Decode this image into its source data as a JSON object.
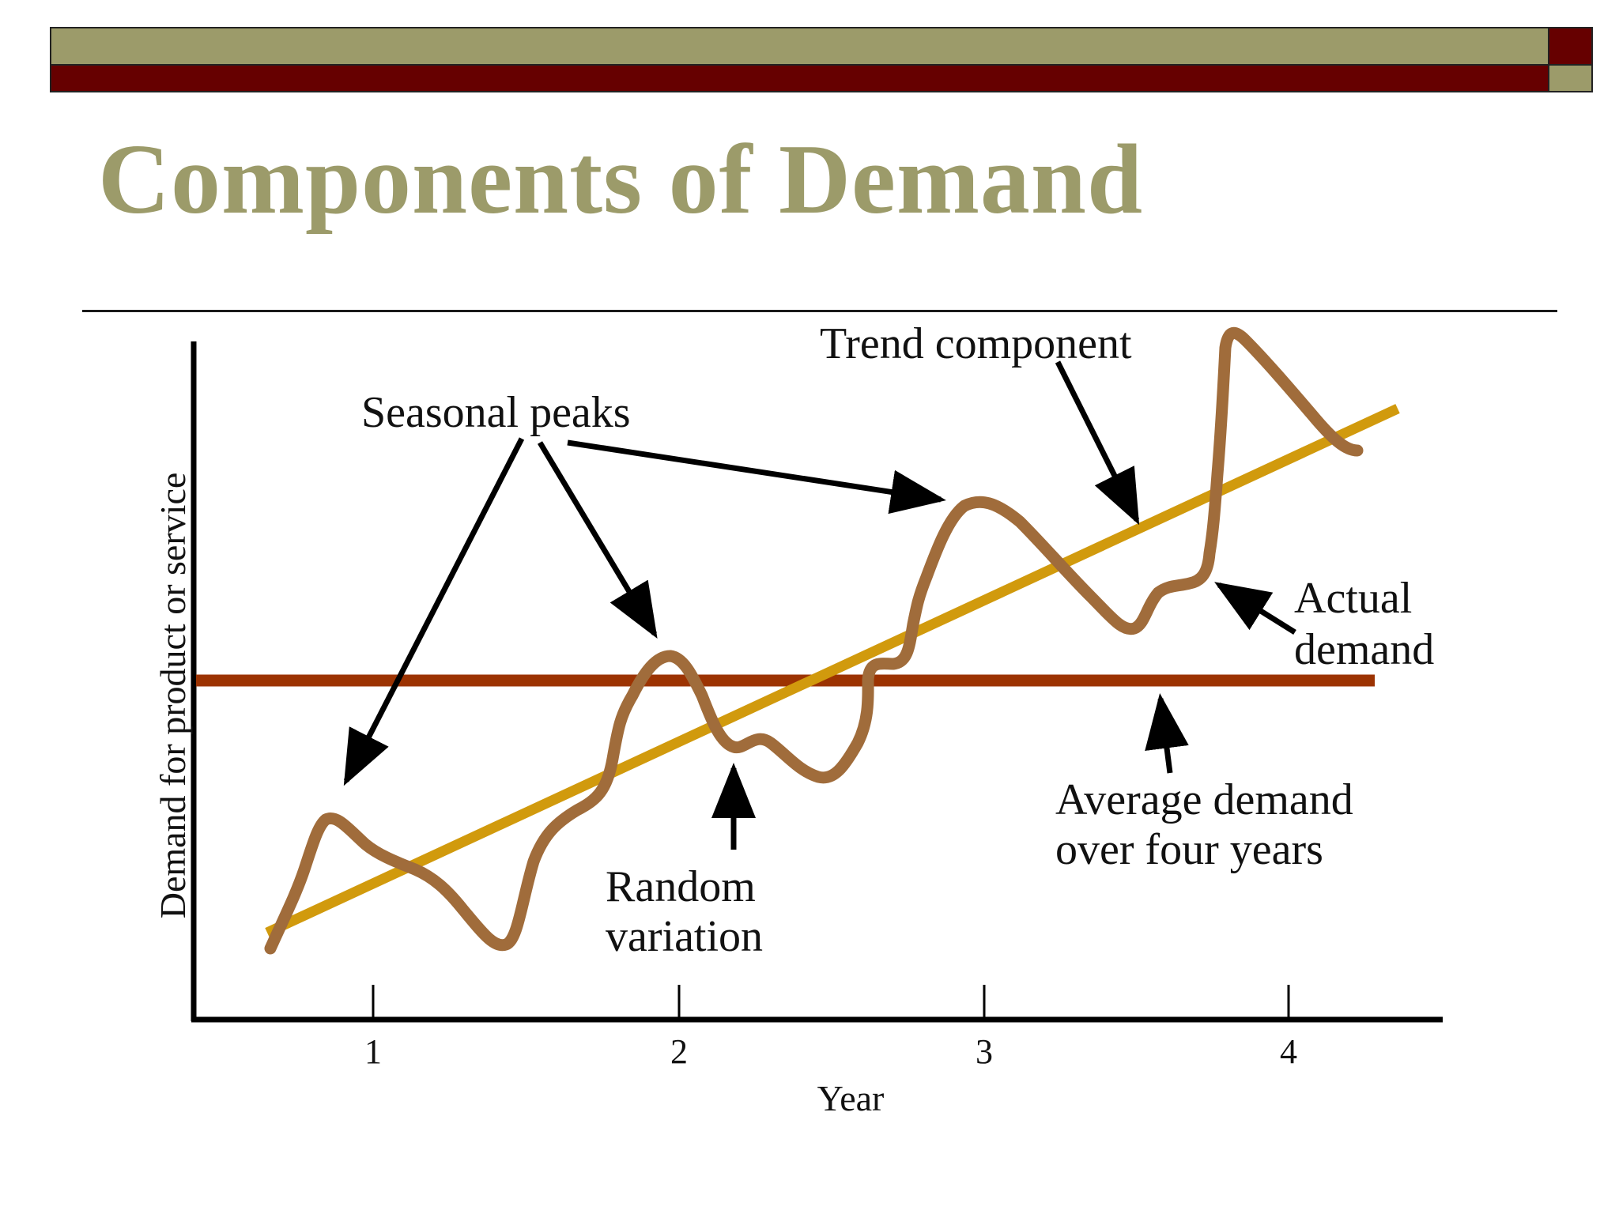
{
  "title": "Components of Demand",
  "colors": {
    "bar_olive": "#9c9b6a",
    "bar_maroon": "#660000",
    "title": "#9c9b6a",
    "trend_line": "#d19a0d",
    "average_line": "#9c3302",
    "actual_demand": "#a06c3b",
    "ink": "#111111"
  },
  "axes": {
    "y_label": "Demand for product or service",
    "x_label": "Year",
    "x_ticks": [
      "1",
      "2",
      "3",
      "4"
    ]
  },
  "labels": {
    "seasonal_peaks": "Seasonal peaks",
    "trend_component": "Trend component",
    "actual_demand": [
      "Actual",
      "demand"
    ],
    "random_variation": [
      "Random",
      "variation"
    ],
    "average_demand": [
      "Average demand",
      "over four years"
    ]
  }
}
